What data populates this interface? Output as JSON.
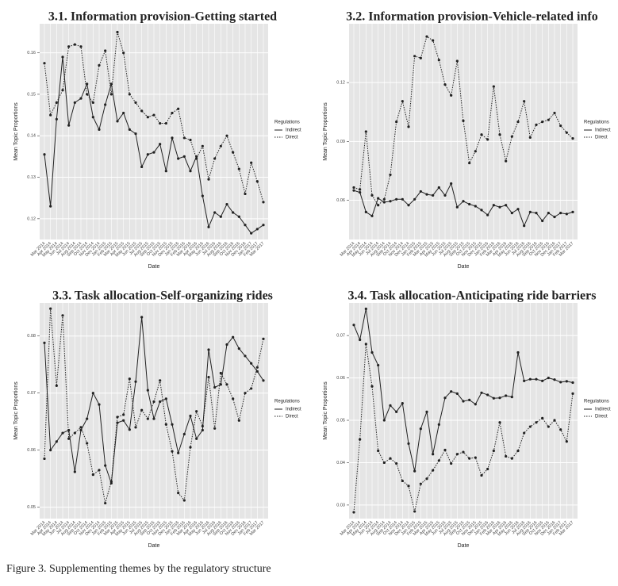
{
  "figure_caption": "Figure 3. Supplementing themes by the regulatory structure",
  "chart_data": [
    {
      "type": "line",
      "title": "3.1. Information provision-Getting started",
      "x_label": "Date",
      "y_label": "Mean Topic Proportions",
      "legend_title": "Regulations",
      "grid": true,
      "categories": [
        "Mar 2014",
        "Apr 2014",
        "May 2014",
        "Jun 2014",
        "Jul 2014",
        "Aug 2014",
        "Sep 2014",
        "Oct 2014",
        "Nov 2014",
        "Dec 2014",
        "Jan 2015",
        "Feb 2015",
        "Mar 2015",
        "Apr 2015",
        "May 2015",
        "Jun 2015",
        "Jul 2015",
        "Aug 2015",
        "Sep 2015",
        "Oct 2015",
        "Nov 2015",
        "Dec 2015",
        "Jan 2016",
        "Feb 2016",
        "Mar 2016",
        "Apr 2016",
        "May 2016",
        "Jun 2016",
        "Jul 2016",
        "Aug 2016",
        "Sep 2016",
        "Oct 2016",
        "Nov 2016",
        "Dec 2016",
        "Jan 2017",
        "Feb 2017",
        "Mar 2017"
      ],
      "ylim": [
        0.115,
        0.167
      ],
      "yticks": [
        0.12,
        0.13,
        0.14,
        0.15,
        0.16
      ],
      "series": [
        {
          "name": "Indirect",
          "color": "#222222",
          "linestyle": "solid",
          "values": [
            0.1355,
            0.123,
            0.144,
            0.159,
            0.1425,
            0.148,
            0.149,
            0.1525,
            0.1445,
            0.1415,
            0.1475,
            0.1525,
            0.1435,
            0.1455,
            0.1415,
            0.1405,
            0.1325,
            0.1355,
            0.136,
            0.138,
            0.1315,
            0.1395,
            0.1345,
            0.135,
            0.1315,
            0.135,
            0.1255,
            0.118,
            0.1215,
            0.1205,
            0.1235,
            0.1215,
            0.1205,
            0.1185,
            0.1165,
            0.1175,
            0.1185
          ]
        },
        {
          "name": "Direct",
          "color": "#222222",
          "linestyle": "dotted",
          "values": [
            0.1575,
            0.145,
            0.148,
            0.151,
            0.1615,
            0.162,
            0.1615,
            0.15,
            0.148,
            0.157,
            0.1605,
            0.15,
            0.165,
            0.16,
            0.15,
            0.148,
            0.146,
            0.1445,
            0.145,
            0.143,
            0.143,
            0.1455,
            0.1465,
            0.1395,
            0.139,
            0.1345,
            0.1375,
            0.1295,
            0.1345,
            0.1375,
            0.14,
            0.136,
            0.132,
            0.126,
            0.1335,
            0.129,
            0.124
          ]
        }
      ]
    },
    {
      "type": "line",
      "title": "3.2. Information provision-Vehicle-related info",
      "x_label": "Date",
      "y_label": "Mean Topic Proportions",
      "legend_title": "Regulations",
      "grid": true,
      "categories": [
        "Mar 2014",
        "Apr 2014",
        "May 2014",
        "Jun 2014",
        "Jul 2014",
        "Aug 2014",
        "Sep 2014",
        "Oct 2014",
        "Nov 2014",
        "Dec 2014",
        "Jan 2015",
        "Feb 2015",
        "Mar 2015",
        "Apr 2015",
        "May 2015",
        "Jun 2015",
        "Jul 2015",
        "Aug 2015",
        "Sep 2015",
        "Oct 2015",
        "Nov 2015",
        "Dec 2015",
        "Jan 2016",
        "Feb 2016",
        "Mar 2016",
        "Apr 2016",
        "May 2016",
        "Jun 2016",
        "Jul 2016",
        "Aug 2016",
        "Sep 2016",
        "Oct 2016",
        "Nov 2016",
        "Dec 2016",
        "Jan 2017",
        "Feb 2017",
        "Mar 2017"
      ],
      "ylim": [
        0.04,
        0.15
      ],
      "yticks": [
        0.06,
        0.09,
        0.12
      ],
      "series": [
        {
          "name": "Indirect",
          "color": "#222222",
          "linestyle": "solid",
          "values": [
            0.065,
            0.064,
            0.054,
            0.052,
            0.061,
            0.059,
            0.0595,
            0.0605,
            0.0605,
            0.0575,
            0.0605,
            0.0645,
            0.063,
            0.0625,
            0.0665,
            0.0625,
            0.0685,
            0.0565,
            0.0595,
            0.058,
            0.057,
            0.055,
            0.0525,
            0.0575,
            0.0565,
            0.0575,
            0.0535,
            0.0555,
            0.047,
            0.054,
            0.0535,
            0.0495,
            0.0535,
            0.0515,
            0.0535,
            0.053,
            0.054
          ]
        },
        {
          "name": "Direct",
          "color": "#222222",
          "linestyle": "dotted",
          "values": [
            0.0665,
            0.0655,
            0.095,
            0.0625,
            0.0575,
            0.0605,
            0.073,
            0.1,
            0.1105,
            0.0975,
            0.1335,
            0.1325,
            0.1435,
            0.1415,
            0.1315,
            0.119,
            0.1135,
            0.131,
            0.1005,
            0.079,
            0.085,
            0.0935,
            0.091,
            0.118,
            0.0935,
            0.08,
            0.0925,
            0.1,
            0.1105,
            0.092,
            0.0985,
            0.1,
            0.101,
            0.1045,
            0.098,
            0.0945,
            0.0915
          ]
        }
      ]
    },
    {
      "type": "line",
      "title": "3.3. Task allocation-Self-organizing rides",
      "x_label": "Date",
      "y_label": "Mean Topic Proportions",
      "legend_title": "Regulations",
      "grid": true,
      "categories": [
        "Mar 2014",
        "Apr 2014",
        "May 2014",
        "Jun 2014",
        "Jul 2014",
        "Aug 2014",
        "Sep 2014",
        "Oct 2014",
        "Nov 2014",
        "Dec 2014",
        "Jan 2015",
        "Feb 2015",
        "Mar 2015",
        "Apr 2015",
        "May 2015",
        "Jun 2015",
        "Jul 2015",
        "Aug 2015",
        "Sep 2015",
        "Oct 2015",
        "Nov 2015",
        "Dec 2015",
        "Jan 2016",
        "Feb 2016",
        "Mar 2016",
        "Apr 2016",
        "May 2016",
        "Jun 2016",
        "Jul 2016",
        "Aug 2016",
        "Sep 2016",
        "Oct 2016",
        "Nov 2016",
        "Dec 2016",
        "Jan 2017",
        "Feb 2017",
        "Mar 2017"
      ],
      "ylim": [
        0.048,
        0.0858
      ],
      "yticks": [
        0.05,
        0.06,
        0.07,
        0.08
      ],
      "series": [
        {
          "name": "Indirect",
          "color": "#222222",
          "linestyle": "solid",
          "values": [
            0.0788,
            0.06,
            0.0615,
            0.063,
            0.0635,
            0.0562,
            0.0635,
            0.0655,
            0.07,
            0.068,
            0.0573,
            0.0542,
            0.0648,
            0.0652,
            0.0636,
            0.072,
            0.0833,
            0.0705,
            0.0655,
            0.0685,
            0.069,
            0.0645,
            0.0595,
            0.0628,
            0.066,
            0.062,
            0.0635,
            0.0776,
            0.071,
            0.0715,
            0.0785,
            0.0798,
            0.0778,
            0.0765,
            0.0752,
            0.0738,
            0.0722
          ]
        },
        {
          "name": "Direct",
          "color": "#222222",
          "linestyle": "dotted",
          "values": [
            0.0585,
            0.0848,
            0.0713,
            0.0836,
            0.062,
            0.063,
            0.064,
            0.0612,
            0.0557,
            0.0565,
            0.0507,
            0.0545,
            0.0658,
            0.0662,
            0.0725,
            0.064,
            0.067,
            0.0655,
            0.0685,
            0.0722,
            0.0645,
            0.0598,
            0.0525,
            0.0512,
            0.0605,
            0.0668,
            0.0642,
            0.0728,
            0.0638,
            0.0735,
            0.0715,
            0.069,
            0.0652,
            0.07,
            0.0708,
            0.0745,
            0.0795
          ]
        }
      ]
    },
    {
      "type": "line",
      "title": "3.4. Task allocation-Anticipating ride barriers",
      "x_label": "Date",
      "y_label": "Mean Topic Proportions",
      "legend_title": "Regulations",
      "grid": true,
      "categories": [
        "Mar 2014",
        "Apr 2014",
        "May 2014",
        "Jun 2014",
        "Jul 2014",
        "Aug 2014",
        "Sep 2014",
        "Oct 2014",
        "Nov 2014",
        "Dec 2014",
        "Jan 2015",
        "Feb 2015",
        "Mar 2015",
        "Apr 2015",
        "May 2015",
        "Jun 2015",
        "Jul 2015",
        "Aug 2015",
        "Sep 2015",
        "Oct 2015",
        "Nov 2015",
        "Dec 2015",
        "Jan 2016",
        "Feb 2016",
        "Mar 2016",
        "Apr 2016",
        "May 2016",
        "Jun 2016",
        "Jul 2016",
        "Aug 2016",
        "Sep 2016",
        "Oct 2016",
        "Nov 2016",
        "Dec 2016",
        "Jan 2017",
        "Feb 2017",
        "Mar 2017"
      ],
      "ylim": [
        0.0268,
        0.0777
      ],
      "yticks": [
        0.03,
        0.04,
        0.05,
        0.06,
        0.07
      ],
      "series": [
        {
          "name": "Indirect",
          "color": "#222222",
          "linestyle": "solid",
          "values": [
            0.0725,
            0.069,
            0.0763,
            0.066,
            0.063,
            0.05,
            0.0535,
            0.052,
            0.054,
            0.0445,
            0.038,
            0.048,
            0.052,
            0.042,
            0.049,
            0.0553,
            0.0568,
            0.0563,
            0.0545,
            0.0548,
            0.0538,
            0.0565,
            0.056,
            0.0552,
            0.0553,
            0.0558,
            0.0555,
            0.066,
            0.0593,
            0.0597,
            0.0597,
            0.0593,
            0.06,
            0.0596,
            0.059,
            0.0592,
            0.0589
          ]
        },
        {
          "name": "Direct",
          "color": "#222222",
          "linestyle": "dotted",
          "values": [
            0.0283,
            0.0455,
            0.068,
            0.058,
            0.0428,
            0.04,
            0.041,
            0.0398,
            0.0357,
            0.0345,
            0.0285,
            0.035,
            0.0362,
            0.0382,
            0.0405,
            0.043,
            0.0398,
            0.042,
            0.0425,
            0.041,
            0.0412,
            0.037,
            0.0385,
            0.0428,
            0.0495,
            0.0415,
            0.041,
            0.0428,
            0.047,
            0.0485,
            0.0495,
            0.0505,
            0.0485,
            0.05,
            0.0478,
            0.045,
            0.0563
          ]
        }
      ]
    }
  ]
}
